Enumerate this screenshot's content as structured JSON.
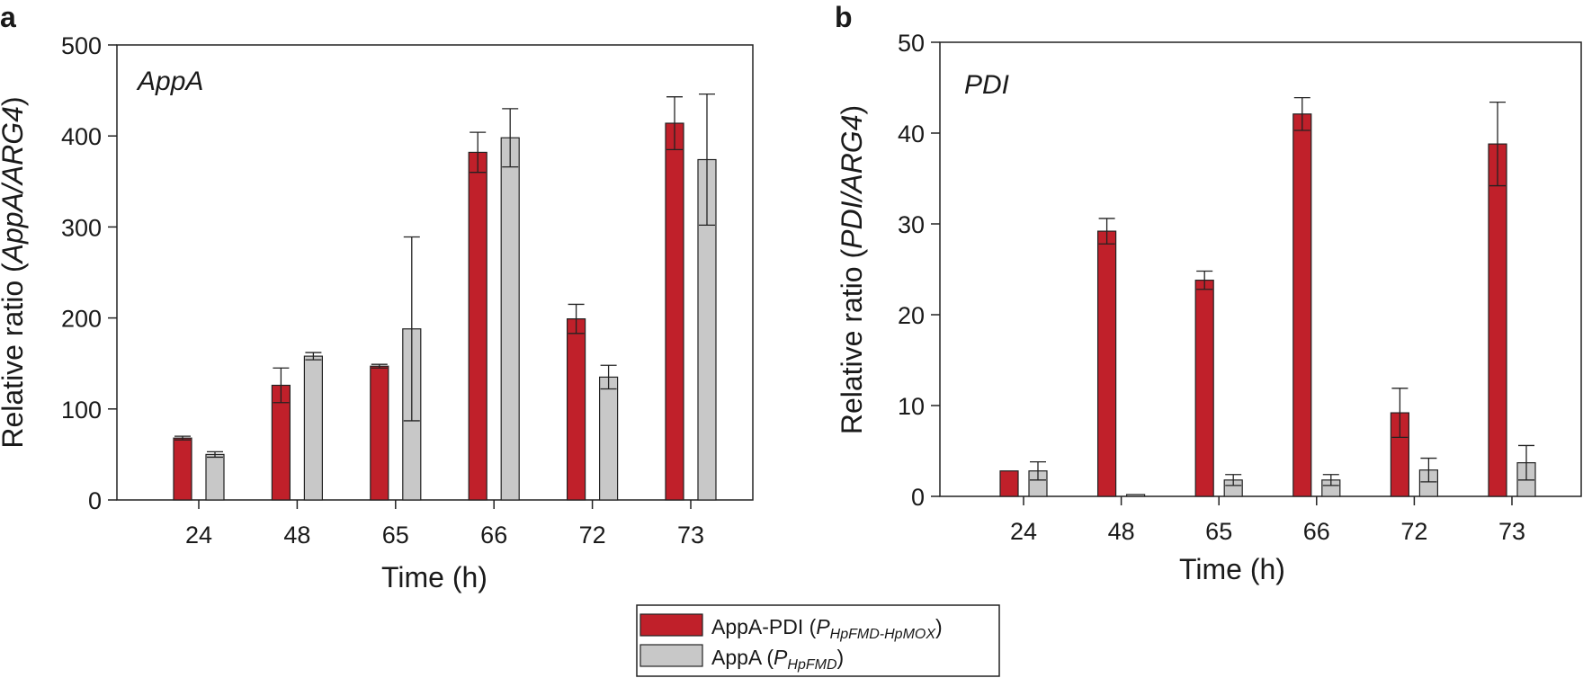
{
  "chart_data": [
    {
      "type": "bar",
      "panel_label": "a",
      "title": "AppA",
      "xlabel": "Time (h)",
      "ylabel_prefix": "Relative ratio (",
      "ylabel_italic": "AppA/ARG4",
      "ylabel_suffix": ")",
      "ylim": [
        0,
        500
      ],
      "yticks": [
        "0",
        "100",
        "200",
        "300",
        "400",
        "500"
      ],
      "categories": [
        "24",
        "48",
        "65",
        "66",
        "72",
        "73"
      ],
      "series": [
        {
          "name": "AppA-PDI",
          "values": [
            68,
            126,
            147,
            382,
            199,
            414
          ],
          "errors": [
            2,
            19,
            2,
            22,
            16,
            29
          ]
        },
        {
          "name": "AppA",
          "values": [
            50,
            158,
            188,
            398,
            135,
            374
          ],
          "errors": [
            3,
            4,
            101,
            32,
            13,
            72
          ]
        }
      ]
    },
    {
      "type": "bar",
      "panel_label": "b",
      "title": "PDI",
      "xlabel": "Time (h)",
      "ylabel_prefix": "Relative ratio (",
      "ylabel_italic": "PDI/ARG4",
      "ylabel_suffix": ")",
      "ylim": [
        0,
        50
      ],
      "yticks": [
        "0",
        "10",
        "20",
        "30",
        "40",
        "50"
      ],
      "categories": [
        "24",
        "48",
        "65",
        "66",
        "72",
        "73"
      ],
      "series": [
        {
          "name": "AppA-PDI",
          "values": [
            2.8,
            29.2,
            23.8,
            42.1,
            9.2,
            38.8
          ],
          "errors": [
            0,
            1.4,
            1.0,
            1.8,
            2.7,
            4.6
          ]
        },
        {
          "name": "AppA",
          "values": [
            2.8,
            0.2,
            1.8,
            1.8,
            2.9,
            3.7
          ],
          "errors": [
            1.0,
            0,
            0.6,
            0.6,
            1.3,
            1.9
          ]
        }
      ]
    }
  ],
  "legend": {
    "items": [
      {
        "label": "AppA-PDI (",
        "subscript": "HpFMD-HpMOX",
        "close": ")",
        "color": "#c0202a"
      },
      {
        "label": "AppA (",
        "subscript": "HpFMD",
        "close": ")",
        "color": "#c8c8c8"
      }
    ],
    "promoter_letter": "P"
  },
  "colors": {
    "series0": "#c0202a",
    "series1": "#c8c8c8",
    "stroke": "#222222"
  }
}
